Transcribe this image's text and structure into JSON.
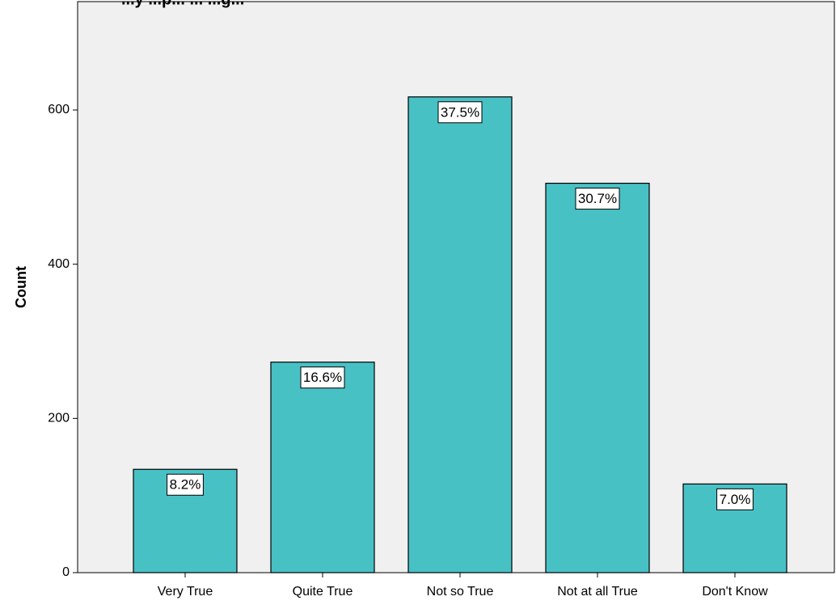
{
  "chart_data": {
    "type": "bar",
    "title": "...y ...p... ... ...g...",
    "xlabel": "",
    "ylabel": "Count",
    "categories": [
      "Very True",
      "Quite True",
      "Not so True",
      "Not at all True",
      "Don't Know"
    ],
    "values": [
      134,
      273,
      617,
      505,
      115
    ],
    "data_labels": [
      "8.2%",
      "16.6%",
      "37.5%",
      "30.7%",
      "7.0%"
    ],
    "ylim": [
      0,
      730
    ],
    "yticks": [
      0,
      200,
      400,
      600
    ],
    "bar_color": "#48C1C5",
    "plot_background": "#F0F0F0",
    "grid": false
  }
}
